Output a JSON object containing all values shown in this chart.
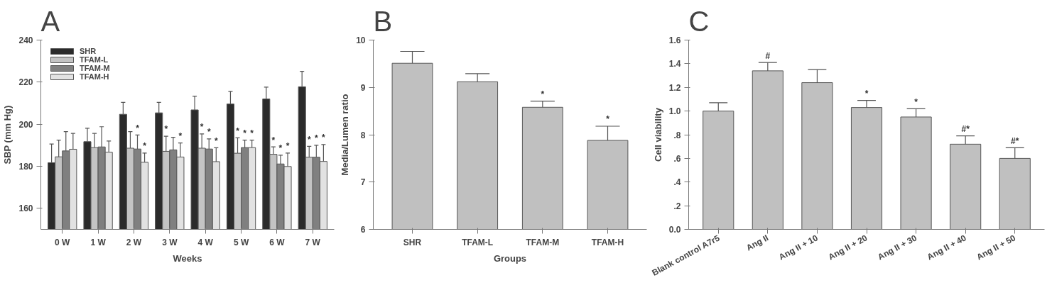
{
  "chart_data": [
    {
      "type": "bar",
      "title": "A",
      "xlabel": "Weeks",
      "ylabel": "SBP (mm Hg)",
      "categories": [
        "0 W",
        "1 W",
        "2 W",
        "3 W",
        "4 W",
        "5 W",
        "6 W",
        "7 W"
      ],
      "ylim": [
        150,
        240
      ],
      "yticks": [
        160,
        180,
        200,
        220,
        240
      ],
      "legend": "top left",
      "series": [
        {
          "name": "SHR",
          "color": "#2b2b2b",
          "values": [
            181.7,
            191.7,
            204.7,
            205.4,
            206.8,
            209.6,
            212.0,
            217.8
          ],
          "errors": [
            [
              181.7,
              190.6
            ],
            [
              191.7,
              198.1
            ],
            [
              204.7,
              210.4
            ],
            [
              205.4,
              210.4
            ],
            [
              206.8,
              213.3
            ],
            [
              209.6,
              215.6
            ],
            [
              212.0,
              217.6
            ],
            [
              217.8,
              225.1
            ]
          ],
          "value_labels": [
            null,
            null,
            null,
            null,
            null,
            null,
            null,
            null
          ]
        },
        {
          "name": "TFAM-L",
          "color": "#c4c4c4",
          "values": [
            184.5,
            188.9,
            188.6,
            187.1,
            188.6,
            186.2,
            185.7,
            184.3
          ],
          "errors": [
            [
              184.5,
              192.4
            ],
            [
              188.9,
              195.6
            ],
            [
              188.6,
              196.5
            ],
            [
              187.1,
              194.3
            ],
            [
              188.6,
              195.4
            ],
            [
              186.2,
              193.5
            ],
            [
              185.7,
              189.2
            ],
            [
              184.3,
              189.5
            ]
          ],
          "value_labels": [
            null,
            null,
            null,
            "*",
            "*",
            "*",
            "*",
            "*"
          ]
        },
        {
          "name": "TFAM-M",
          "color": "#808080",
          "values": [
            187.3,
            189.2,
            188.2,
            187.8,
            188.2,
            188.9,
            181.1,
            184.3
          ],
          "errors": [
            [
              187.3,
              196.5
            ],
            [
              189.2,
              198.8
            ],
            [
              188.2,
              194.9
            ],
            [
              187.8,
              193.8
            ],
            [
              188.2,
              193.0
            ],
            [
              188.9,
              192.4
            ],
            [
              181.1,
              185.3
            ],
            [
              184.3,
              190.0
            ]
          ],
          "value_labels": [
            null,
            null,
            "*",
            null,
            "*",
            "*",
            "*",
            "*"
          ]
        },
        {
          "name": "TFAM-H",
          "color": "#e2e2e2",
          "values": [
            188.1,
            186.7,
            181.9,
            184.4,
            182.2,
            188.9,
            179.9,
            182.3
          ],
          "errors": [
            [
              188.1,
              195.6
            ],
            [
              186.7,
              192.0
            ],
            [
              181.9,
              186.3
            ],
            [
              184.4,
              191.1
            ],
            [
              182.2,
              188.8
            ],
            [
              188.9,
              192.4
            ],
            [
              179.9,
              186.3
            ],
            [
              182.3,
              190.3
            ]
          ],
          "value_labels": [
            null,
            null,
            "*",
            "*",
            "*",
            "*",
            "*",
            "*"
          ]
        }
      ]
    },
    {
      "type": "bar",
      "title": "B",
      "xlabel": "Groups",
      "ylabel": "Media/Lumen ratio",
      "categories": [
        "SHR",
        "TFAM-L",
        "TFAM-M",
        "TFAM-H"
      ],
      "ylim": [
        6,
        10
      ],
      "yticks": [
        6,
        7,
        8,
        9,
        10
      ],
      "color": "#c0c0c0",
      "values": [
        9.51,
        9.12,
        8.58,
        7.88
      ],
      "errors": [
        [
          9.51,
          9.76
        ],
        [
          9.12,
          9.29
        ],
        [
          8.58,
          8.71
        ],
        [
          7.88,
          8.18
        ]
      ],
      "value_labels": [
        null,
        null,
        "*",
        "*"
      ]
    },
    {
      "type": "bar",
      "title": "C",
      "ylabel": "Cell viability",
      "categories": [
        "Blank control A7r5",
        "Ang II",
        "Ang II + 10",
        "Ang II + 20",
        "Ang II + 30",
        "Ang II + 40",
        "Ang II + 50"
      ],
      "ylim": [
        0,
        1.6
      ],
      "yticks": [
        {
          "value": 0,
          "label": "0.0"
        },
        {
          "value": 0.2,
          "label": ".2"
        },
        {
          "value": 0.4,
          "label": ".4"
        },
        {
          "value": 0.6,
          "label": ".6"
        },
        {
          "value": 0.8,
          "label": ".8"
        },
        {
          "value": 1.0,
          "label": "1.0"
        },
        {
          "value": 1.2,
          "label": "1.2"
        },
        {
          "value": 1.4,
          "label": "1.4"
        },
        {
          "value": 1.6,
          "label": "1.6"
        }
      ],
      "color": "#c0c0c0",
      "values": [
        1.0,
        1.34,
        1.24,
        1.03,
        0.95,
        0.72,
        0.6
      ],
      "errors": [
        [
          1.0,
          1.07
        ],
        [
          1.34,
          1.41
        ],
        [
          1.24,
          1.35
        ],
        [
          1.03,
          1.09
        ],
        [
          0.95,
          1.02
        ],
        [
          0.72,
          0.79
        ],
        [
          0.6,
          0.69
        ]
      ],
      "value_labels": [
        null,
        "#",
        null,
        "*",
        "*",
        "#*",
        "#*"
      ]
    }
  ]
}
